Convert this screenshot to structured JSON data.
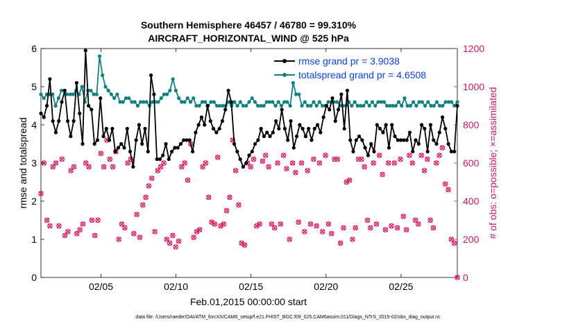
{
  "chart_data": {
    "type": "line",
    "title": "Southern Hemisphere 46457 / 46780 = 99.310%",
    "subtitle": "AIRCRAFT_HORIZONTAL_WIND @ 525 hPa",
    "xlabel": "Feb.01,2015 00:00:00 start",
    "ylabel": "rmse and totalspread",
    "ylabel_right": "# of obs: o=possible; ×=assimilated",
    "footer": "data file: /Users/raeder/DAI/ATM_forcXX/CAM6_setup/f.e21.FHIST_BGC.f09_025.CAM6assim.011/Diags_NTrS_2015-02/obs_diag_output.nc",
    "xlim": [
      1,
      28.75
    ],
    "ylim": [
      0,
      6
    ],
    "ylim_right": [
      0,
      1200
    ],
    "x_ticks": [
      {
        "v": 5,
        "label": "02/05"
      },
      {
        "v": 10,
        "label": "02/10"
      },
      {
        "v": 15,
        "label": "02/15"
      },
      {
        "v": 20,
        "label": "02/20"
      },
      {
        "v": 25,
        "label": "02/25"
      }
    ],
    "y_ticks": [
      "0",
      "1",
      "2",
      "3",
      "4",
      "5",
      "6"
    ],
    "y_ticks_right": [
      "0",
      "200",
      "400",
      "600",
      "800",
      "1000",
      "1200"
    ],
    "grid": false,
    "legend_position": "top-right",
    "series": [
      {
        "name": "rmse grand pr = 3.9038",
        "axis": "left",
        "color": "#000000",
        "values": [
          4.3,
          4.2,
          4.5,
          5.2,
          4.1,
          3.8,
          4.1,
          4.6,
          4.9,
          4.1,
          3.7,
          4.1,
          5.1,
          4.3,
          3.5,
          5.95,
          4.5,
          4.4,
          3.5,
          3.6,
          4.7,
          3.7,
          3.9,
          3.6,
          3.9,
          3.3,
          3.4,
          3.5,
          3.4,
          3.9,
          3.3,
          2.9,
          3.6,
          4.0,
          3.5,
          3.9,
          3.3,
          5.3,
          4.8,
          3.1,
          3.1,
          3.2,
          3.5,
          3.1,
          3.3,
          3.4,
          3.4,
          3.5,
          3.6,
          3.6,
          3.6,
          3.3,
          3.8,
          4.0,
          4.2,
          4.0,
          4.5,
          4.1,
          3.9,
          3.8,
          3.9,
          4.1,
          4.4,
          4.9,
          4.6,
          3.5,
          3.3,
          3.1,
          2.9,
          3.0,
          3.2,
          3.3,
          3.5,
          3.6,
          3.9,
          3.7,
          3.8,
          3.7,
          3.8,
          4.1,
          3.9,
          4.4,
          3.9,
          3.6,
          4.1,
          3.4,
          3.7,
          4.0,
          3.9,
          3.7,
          3.9,
          3.6,
          3.9,
          4.0,
          3.8,
          4.2,
          4.5,
          4.4,
          4.7,
          4.1,
          4.4,
          4.8,
          3.9,
          4.9,
          3.6,
          3.3,
          3.6,
          3.7,
          3.6,
          3.4,
          3.2,
          3.5,
          3.3,
          4.0,
          3.9,
          3.8,
          4.0,
          3.4,
          4.0,
          3.7,
          3.6,
          3.6,
          3.6,
          3.6,
          3.8,
          3.3,
          3.6,
          3.5,
          4.0,
          3.9,
          3.3,
          4.0,
          3.6,
          3.5,
          3.8,
          4.2,
          3.9,
          3.5,
          3.3,
          3.3,
          4.5
        ]
      },
      {
        "name": "totalspread grand pr = 4.6508",
        "axis": "left",
        "color": "#118080",
        "values": [
          4.8,
          4.7,
          4.8,
          4.8,
          4.8,
          4.5,
          4.7,
          4.9,
          4.9,
          4.8,
          4.8,
          4.8,
          4.9,
          4.8,
          5.0,
          4.6,
          4.9,
          4.9,
          4.8,
          4.8,
          5.8,
          5.3,
          5.0,
          4.9,
          4.8,
          4.7,
          4.8,
          4.6,
          4.6,
          4.7,
          4.7,
          4.6,
          4.6,
          4.5,
          4.6,
          4.6,
          4.6,
          4.5,
          4.6,
          4.6,
          4.6,
          4.7,
          4.8,
          4.8,
          4.9,
          5.2,
          4.9,
          4.7,
          4.6,
          4.6,
          4.7,
          4.6,
          4.7,
          4.5,
          4.5,
          4.6,
          4.6,
          4.5,
          4.6,
          4.6,
          4.5,
          4.5,
          4.5,
          4.5,
          4.6,
          4.5,
          4.6,
          4.5,
          4.6,
          4.5,
          4.5,
          4.6,
          4.7,
          4.6,
          4.5,
          4.5,
          4.5,
          4.6,
          4.6,
          4.6,
          4.5,
          4.6,
          4.5,
          4.6,
          4.6,
          4.5,
          5.1,
          4.8,
          4.8,
          4.5,
          4.6,
          4.5,
          4.5,
          4.6,
          4.5,
          4.6,
          4.5,
          4.5,
          4.6,
          4.6,
          4.6,
          4.6,
          4.5,
          4.5,
          4.5,
          4.6,
          4.5,
          4.6,
          4.5,
          4.5,
          4.5,
          4.6,
          4.5,
          4.6,
          4.5,
          4.6,
          4.6,
          4.6,
          4.5,
          4.5,
          4.5,
          4.5,
          4.6,
          4.5,
          4.7,
          4.5,
          4.5,
          4.6,
          4.5,
          4.6,
          4.6,
          4.5,
          4.6,
          4.5,
          4.5,
          4.6,
          4.5,
          4.5,
          4.6,
          4.6,
          4.6,
          4.5,
          4.6
        ]
      }
    ],
    "obs_series": {
      "name": "obs",
      "axis": "right",
      "color": "#d81b60",
      "values": [
        440,
        600,
        300,
        270,
        580,
        600,
        270,
        620,
        220,
        240,
        560,
        580,
        230,
        250,
        280,
        600,
        580,
        300,
        220,
        300,
        650,
        580,
        720,
        620,
        580,
        660,
        200,
        280,
        260,
        600,
        620,
        230,
        330,
        210,
        380,
        420,
        480,
        520,
        240,
        560,
        580,
        600,
        200,
        180,
        220,
        160,
        190,
        580,
        600,
        510,
        700,
        210,
        240,
        250,
        580,
        600,
        420,
        290,
        280,
        630,
        270,
        280,
        350,
        420,
        720,
        560,
        380,
        180,
        170,
        600,
        580,
        620,
        270,
        280,
        610,
        640,
        580,
        280,
        260,
        600,
        280,
        640,
        570,
        200,
        600,
        550,
        290,
        600,
        240,
        560,
        280,
        620,
        270,
        600,
        240,
        640,
        280,
        230,
        620,
        620,
        180,
        260,
        500,
        510,
        200,
        260,
        620,
        620,
        580,
        300,
        260,
        600,
        280,
        640,
        540,
        250,
        600,
        270,
        600,
        260,
        620,
        320,
        250,
        640,
        600,
        300,
        280,
        640,
        560,
        620,
        300,
        260,
        600,
        640,
        680,
        490,
        460,
        200,
        180,
        0
      ]
    }
  }
}
